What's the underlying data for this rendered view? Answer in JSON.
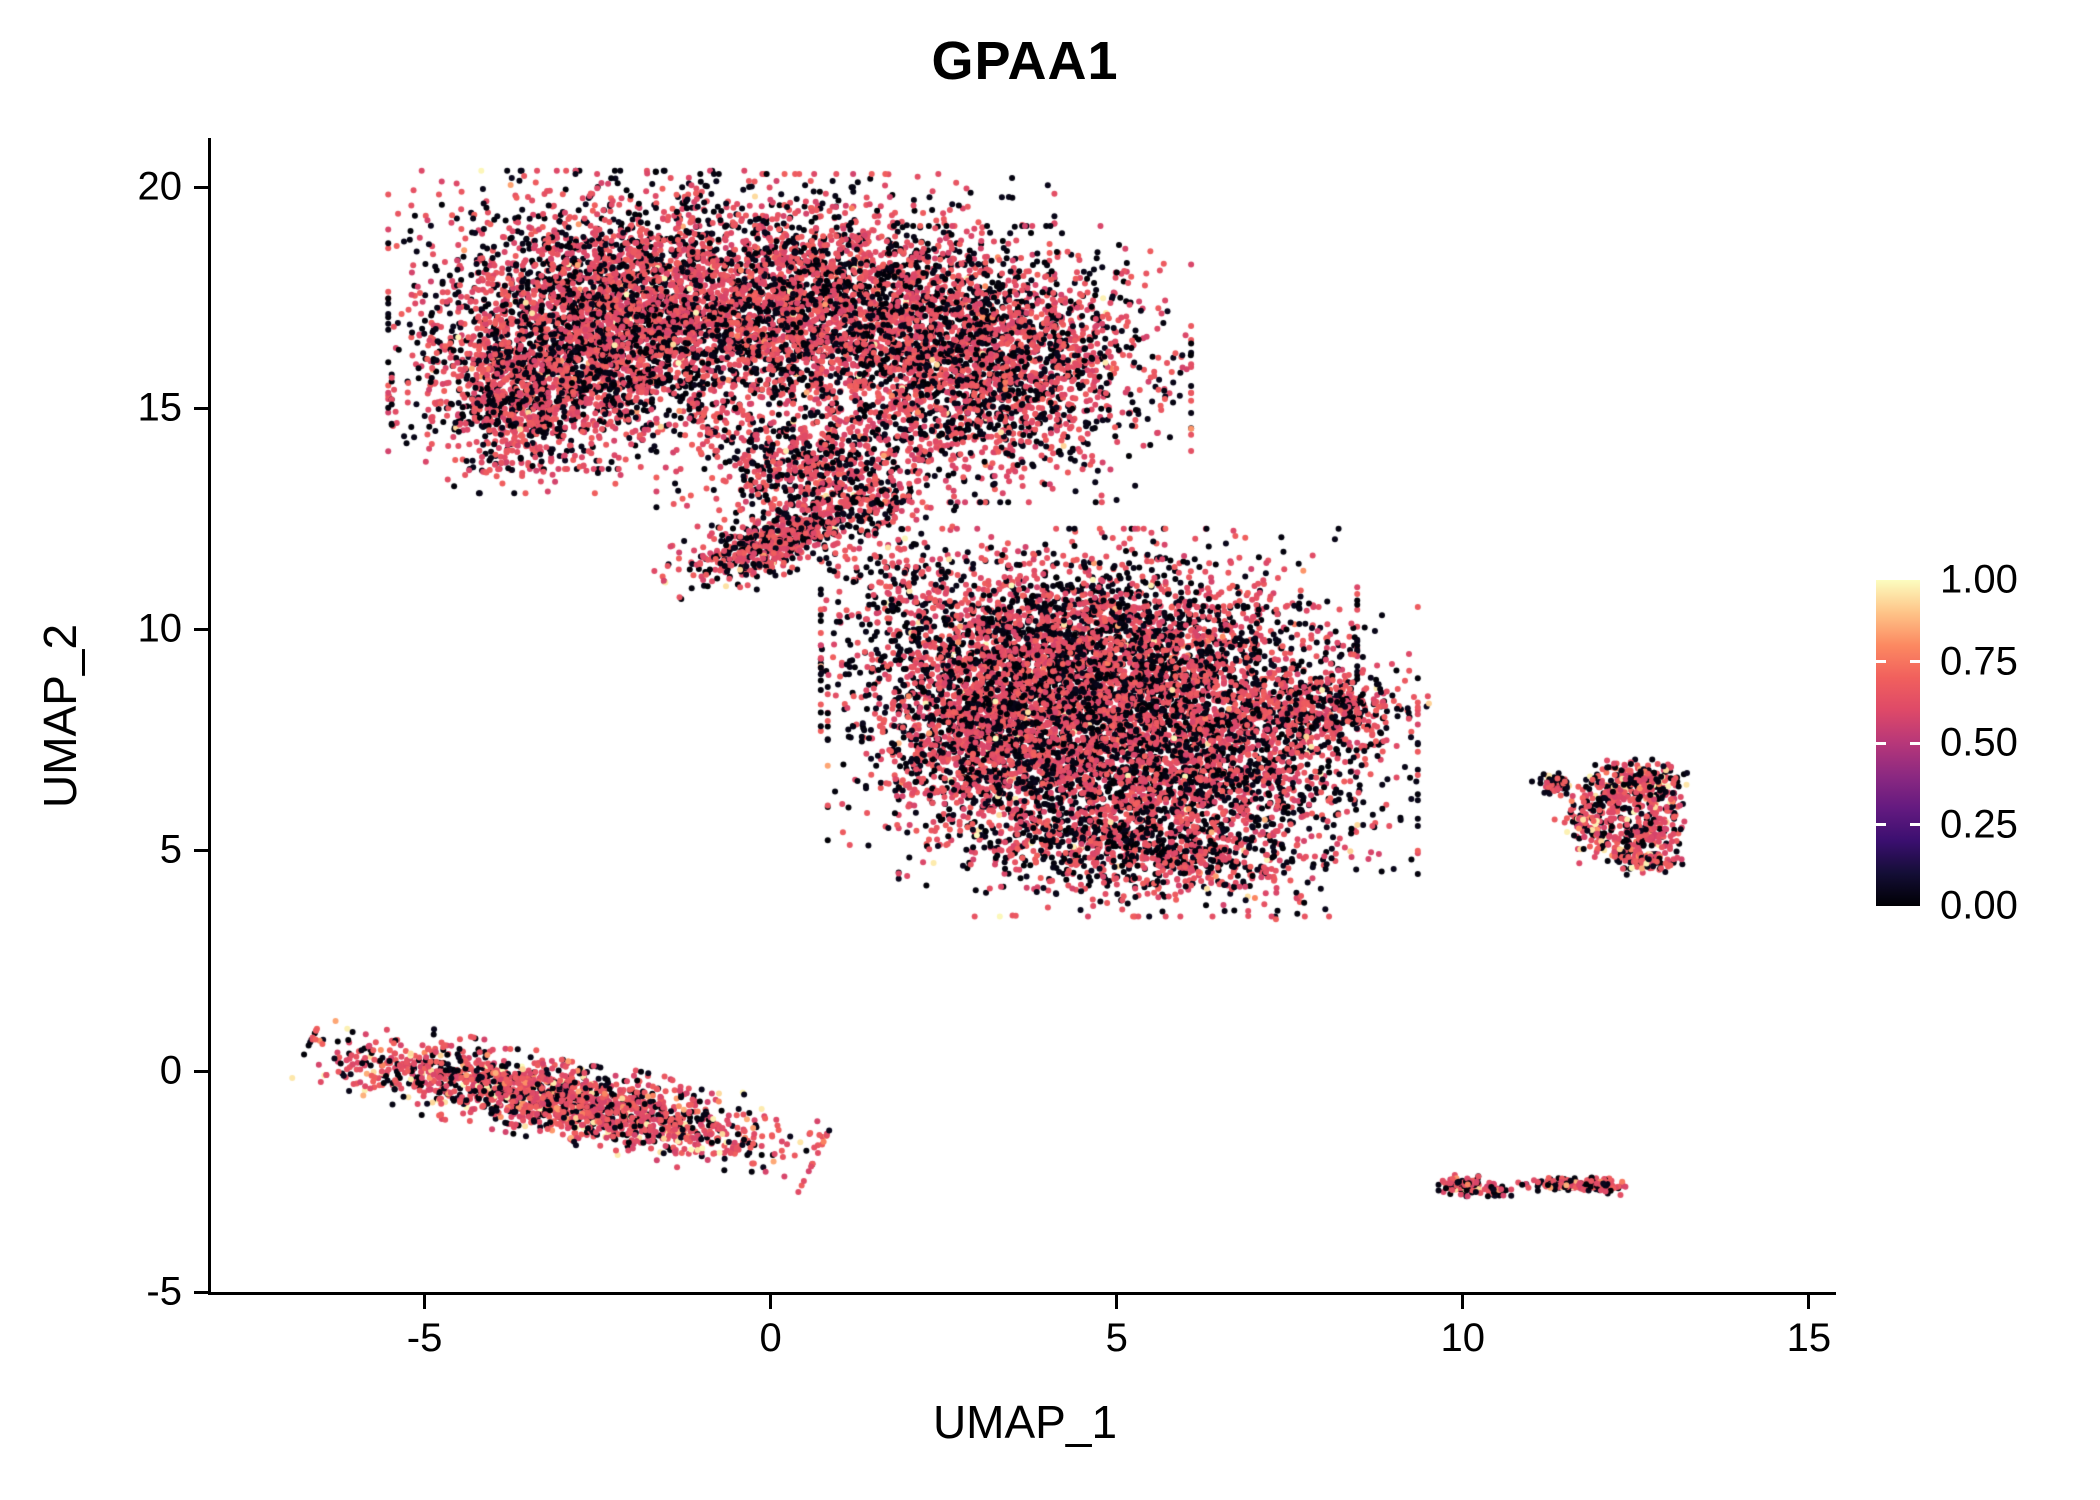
{
  "chart_data": {
    "type": "scatter",
    "title": "GPAA1",
    "xlabel": "UMAP_1",
    "ylabel": "UMAP_2",
    "xlim": [
      -8.1,
      15.45
    ],
    "ylim": [
      -5,
      21.07
    ],
    "grid": false,
    "legend_position": "right",
    "x_axis": {
      "label": "UMAP_1",
      "tick_labels": [
        "-5",
        "0",
        "5",
        "10",
        "15"
      ],
      "tick_values": [
        -5,
        0,
        5,
        10,
        15
      ]
    },
    "y_axis": {
      "label": "UMAP_2",
      "tick_labels": [
        "20",
        "15",
        "10",
        "5",
        "0",
        "-5"
      ],
      "tick_values": [
        20,
        15,
        10,
        5,
        0,
        -5
      ]
    },
    "legend": {
      "tick_labels": [
        "1.00",
        "0.75",
        "0.50",
        "0.25",
        "0.00"
      ],
      "tick_values": [
        1,
        0.75,
        0.5,
        0.25,
        0
      ]
    },
    "colormap": {
      "name": "magma",
      "stops": [
        {
          "t": 0.0,
          "c": "#000004"
        },
        {
          "t": 0.1,
          "c": "#140e36"
        },
        {
          "t": 0.2,
          "c": "#3b0f70"
        },
        {
          "t": 0.3,
          "c": "#641a80"
        },
        {
          "t": 0.4,
          "c": "#8c2981"
        },
        {
          "t": 0.5,
          "c": "#b73779"
        },
        {
          "t": 0.6,
          "c": "#de4968"
        },
        {
          "t": 0.7,
          "c": "#f1605d"
        },
        {
          "t": 0.8,
          "c": "#fc8961"
        },
        {
          "t": 0.9,
          "c": "#fec488"
        },
        {
          "t": 1.0,
          "c": "#fcfdbf"
        }
      ]
    },
    "point_radius_px": 3.0,
    "seed": 42,
    "value_ranges": {
      "black": [
        0.0,
        0.05
      ],
      "rose": [
        0.57,
        0.7
      ],
      "orange": [
        0.75,
        0.87
      ],
      "yellow": [
        0.92,
        1.0
      ]
    },
    "clusters": [
      {
        "name": "top-blob-left",
        "type": "gauss",
        "n": 3200,
        "cx": -2.4,
        "cy": 17.0,
        "sx": 1.25,
        "sy": 1.35,
        "angle": 0,
        "w": [
          0.4,
          0.585,
          0.008,
          0.007
        ]
      },
      {
        "name": "top-blob-center",
        "type": "gauss",
        "n": 2800,
        "cx": 0.6,
        "cy": 17.3,
        "sx": 1.4,
        "sy": 1.2,
        "angle": 0,
        "w": [
          0.4,
          0.585,
          0.008,
          0.007
        ]
      },
      {
        "name": "top-blob-right",
        "type": "gauss",
        "n": 2300,
        "cx": 3.2,
        "cy": 16.0,
        "sx": 1.15,
        "sy": 1.25,
        "angle": 0,
        "w": [
          0.42,
          0.565,
          0.008,
          0.007
        ]
      },
      {
        "name": "top-blob-lowleft",
        "type": "gauss",
        "n": 900,
        "cx": -3.6,
        "cy": 15.2,
        "sx": 0.75,
        "sy": 0.85,
        "angle": 0,
        "w": [
          0.4,
          0.585,
          0.008,
          0.007
        ]
      },
      {
        "name": "top-blob-tongue",
        "type": "gauss",
        "n": 550,
        "cx": 0.6,
        "cy": 13.8,
        "sx": 0.9,
        "sy": 0.6,
        "angle": 0,
        "w": [
          0.42,
          0.565,
          0.008,
          0.007
        ]
      },
      {
        "name": "connector-upper",
        "type": "gauss",
        "n": 260,
        "cx": 0.9,
        "cy": 12.8,
        "sx": 0.7,
        "sy": 0.55,
        "angle": 0,
        "w": [
          0.44,
          0.545,
          0.006,
          0.009
        ]
      },
      {
        "name": "bridge-ridge",
        "type": "gauss",
        "n": 600,
        "cx": 0.1,
        "cy": 12.0,
        "sx": 0.75,
        "sy": 0.28,
        "angle": 0.55,
        "w": [
          0.42,
          0.565,
          0.006,
          0.009
        ]
      },
      {
        "name": "bridge-sparse",
        "type": "gauss",
        "n": 150,
        "cx": 1.9,
        "cy": 11.0,
        "sx": 0.55,
        "sy": 0.75,
        "angle": 0,
        "w": [
          0.46,
          0.525,
          0.006,
          0.009
        ]
      },
      {
        "name": "mid-blob-upper",
        "type": "gauss",
        "n": 3300,
        "cx": 4.6,
        "cy": 9.4,
        "sx": 1.55,
        "sy": 1.15,
        "angle": 0,
        "w": [
          0.46,
          0.525,
          0.006,
          0.009
        ]
      },
      {
        "name": "mid-blob-lower",
        "type": "gauss",
        "n": 3300,
        "cx": 5.6,
        "cy": 7.0,
        "sx": 1.5,
        "sy": 1.4,
        "angle": 0,
        "w": [
          0.47,
          0.515,
          0.006,
          0.009
        ]
      },
      {
        "name": "mid-blob-left",
        "type": "gauss",
        "n": 1400,
        "cx": 3.2,
        "cy": 7.6,
        "sx": 0.95,
        "sy": 1.15,
        "angle": 0,
        "w": [
          0.46,
          0.525,
          0.006,
          0.009
        ]
      },
      {
        "name": "mid-blob-right-tip",
        "type": "gauss",
        "n": 420,
        "cx": 7.9,
        "cy": 8.1,
        "sx": 0.65,
        "sy": 0.42,
        "angle": 0.1,
        "w": [
          0.44,
          0.545,
          0.006,
          0.009
        ]
      },
      {
        "name": "mid-blob-tail",
        "type": "gauss",
        "n": 550,
        "cx": 5.3,
        "cy": 5.0,
        "sx": 1.1,
        "sy": 0.5,
        "angle": -0.15,
        "w": [
          0.47,
          0.515,
          0.006,
          0.009
        ]
      },
      {
        "name": "bottom-left-streak",
        "type": "gauss",
        "n": 1800,
        "cx": -3.0,
        "cy": -0.65,
        "sx": 1.55,
        "sy": 0.38,
        "angle": -0.31,
        "w": [
          0.28,
          0.62,
          0.04,
          0.06
        ]
      },
      {
        "name": "right-ring",
        "type": "ring",
        "n": 520,
        "cx": 12.35,
        "cy": 5.8,
        "r": 0.6,
        "rsd": 0.22,
        "ax": 0.9,
        "ay": 1.1,
        "w": [
          0.33,
          0.55,
          0.05,
          0.07
        ]
      },
      {
        "name": "right-ring-top",
        "type": "gauss",
        "n": 120,
        "cx": 12.6,
        "cy": 6.6,
        "sx": 0.3,
        "sy": 0.18,
        "angle": 0,
        "w": [
          0.33,
          0.56,
          0.05,
          0.06
        ]
      },
      {
        "name": "right-ring-leftdot",
        "type": "gauss",
        "n": 60,
        "cx": 11.35,
        "cy": 6.5,
        "sx": 0.12,
        "sy": 0.1,
        "angle": 0,
        "w": [
          0.4,
          0.52,
          0.04,
          0.04
        ]
      },
      {
        "name": "right-ring-bottom",
        "type": "gauss",
        "n": 80,
        "cx": 12.65,
        "cy": 4.75,
        "sx": 0.25,
        "sy": 0.15,
        "angle": 0,
        "w": [
          0.33,
          0.56,
          0.05,
          0.06
        ]
      },
      {
        "name": "tiny-blob-a",
        "type": "gauss",
        "n": 110,
        "cx": 10.05,
        "cy": -2.6,
        "sx": 0.16,
        "sy": 0.1,
        "angle": 0,
        "w": [
          0.38,
          0.55,
          0.03,
          0.04
        ]
      },
      {
        "name": "tiny-blob-b",
        "type": "gauss",
        "n": 30,
        "cx": 10.5,
        "cy": -2.72,
        "sx": 0.08,
        "sy": 0.05,
        "angle": 0,
        "w": [
          0.38,
          0.56,
          0.03,
          0.03
        ]
      },
      {
        "name": "tiny-dash",
        "type": "gauss",
        "n": 150,
        "cx": 11.55,
        "cy": -2.57,
        "sx": 0.3,
        "sy": 0.07,
        "angle": -0.08,
        "w": [
          0.38,
          0.56,
          0.03,
          0.03
        ]
      },
      {
        "name": "tiny-dash-end",
        "type": "gauss",
        "n": 50,
        "cx": 12.05,
        "cy": -2.55,
        "sx": 0.12,
        "sy": 0.07,
        "angle": 0,
        "w": [
          0.38,
          0.56,
          0.03,
          0.03
        ]
      }
    ],
    "extra_points": [
      {
        "x": 6.9,
        "y": 3.62,
        "v": 0.62
      },
      {
        "x": 10.7,
        "y": -2.68,
        "v": 0.62
      },
      {
        "x": 12.9,
        "y": 6.9,
        "v": 0.05
      },
      {
        "x": 9.05,
        "y": 8.2,
        "v": 0.03
      },
      {
        "x": 1.0,
        "y": 10.3,
        "v": 0.6
      },
      {
        "x": -0.2,
        "y": 10.9,
        "v": 0.03
      },
      {
        "x": 11.0,
        "y": 6.55,
        "v": 0.03
      },
      {
        "x": 2.0,
        "y": 12.9,
        "v": 0.6
      }
    ]
  }
}
